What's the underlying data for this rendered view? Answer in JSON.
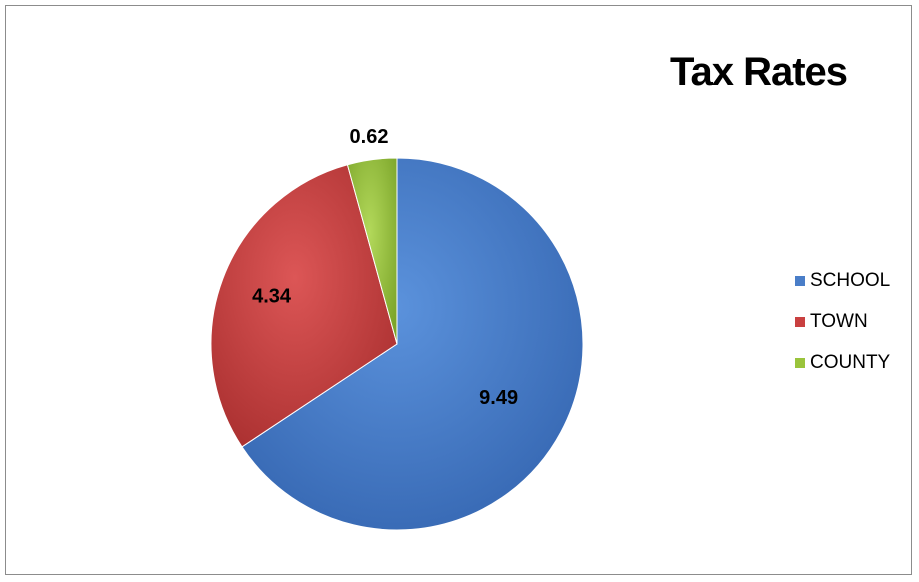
{
  "chart_data": {
    "type": "pie",
    "title": "Tax Rates",
    "categories": [
      "SCHOOL",
      "TOWN",
      "COUNTY"
    ],
    "values": [
      9.49,
      4.34,
      0.62
    ],
    "data_labels": [
      "9.49",
      "4.34",
      "0.62"
    ],
    "colors": [
      "#4a7ec8",
      "#c94040",
      "#9ac43c"
    ],
    "legend_position": "right"
  }
}
